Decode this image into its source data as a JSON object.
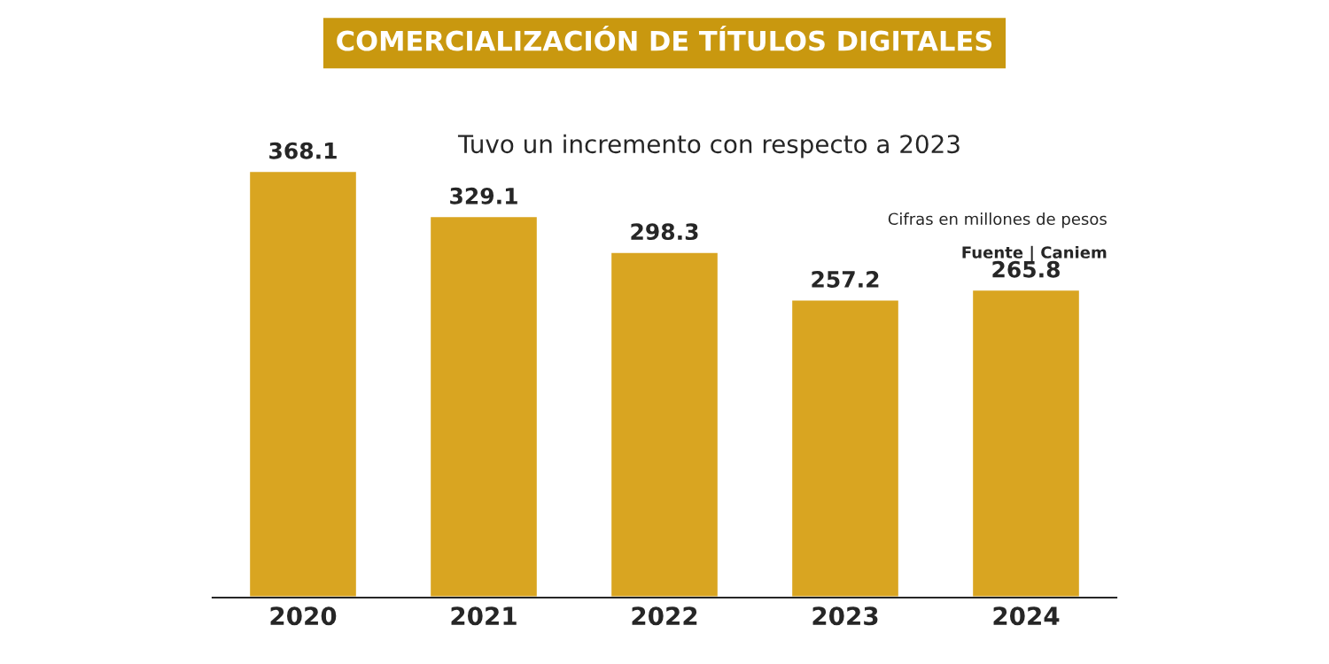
{
  "chart_data": {
    "type": "bar",
    "title": "COMERCIALIZACIÓN DE TÍTULOS DIGITALES",
    "subtitle": "Tuvo un incremento con respecto a 2023",
    "categories": [
      "2020",
      "2021",
      "2022",
      "2023",
      "2024"
    ],
    "values": [
      368.1,
      329.1,
      298.3,
      257.2,
      265.8
    ],
    "color": "#d9a521",
    "data_labels": true,
    "annotations": [
      "Cifras en millones de pesos",
      "Fuente | Caniem"
    ],
    "grid": false,
    "legend": false
  }
}
